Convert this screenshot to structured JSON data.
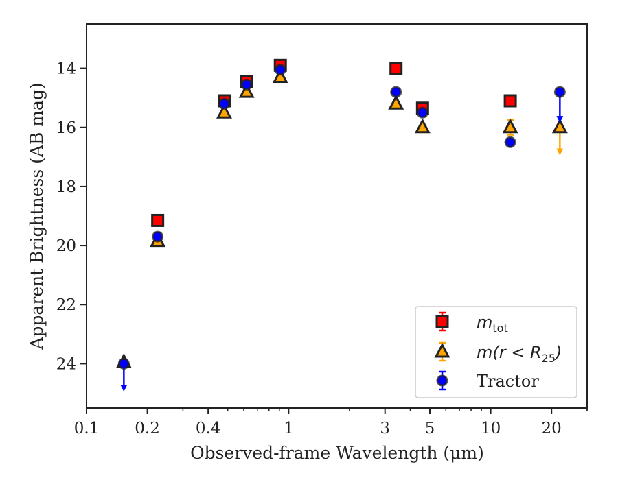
{
  "chart_data": {
    "type": "scatter",
    "title": "",
    "xlabel": "Observed-frame Wavelength (μm)",
    "ylabel": "Apparent Brightness (AB mag)",
    "xscale": "log",
    "xlim": [
      0.1,
      30
    ],
    "ylim": [
      25.5,
      12.5
    ],
    "y_inverted": true,
    "xticks": [
      {
        "value": 0.1,
        "label": "0.1"
      },
      {
        "value": 0.2,
        "label": "0.2"
      },
      {
        "value": 0.4,
        "label": "0.4"
      },
      {
        "value": 1,
        "label": "1"
      },
      {
        "value": 3,
        "label": "3"
      },
      {
        "value": 5,
        "label": "5"
      },
      {
        "value": 10,
        "label": "10"
      },
      {
        "value": 20,
        "label": "20"
      }
    ],
    "yticks": [
      {
        "value": 14,
        "label": "14"
      },
      {
        "value": 16,
        "label": "16"
      },
      {
        "value": 18,
        "label": "18"
      },
      {
        "value": 20,
        "label": "20"
      },
      {
        "value": 22,
        "label": "22"
      },
      {
        "value": 24,
        "label": "24"
      }
    ],
    "grid": false,
    "legend_position": "bottom-right",
    "series": [
      {
        "name": "m_tot",
        "label_main": "m",
        "label_sub": "tot",
        "marker": "square",
        "color": "#ff0000",
        "edge_color": "#222222",
        "points": [
          {
            "x": 0.225,
            "y": 19.15
          },
          {
            "x": 0.48,
            "y": 15.1
          },
          {
            "x": 0.62,
            "y": 14.45
          },
          {
            "x": 0.91,
            "y": 13.9
          },
          {
            "x": 3.4,
            "y": 14.0
          },
          {
            "x": 4.6,
            "y": 15.35
          },
          {
            "x": 12.5,
            "y": 15.1
          }
        ]
      },
      {
        "name": "m(r<R25)",
        "label_main": "m(r < R",
        "label_sub": "25",
        "label_tail": ")",
        "marker": "triangle",
        "color": "#ffa500",
        "edge_color": "#222222",
        "points": [
          {
            "x": 0.153,
            "y": 23.95
          },
          {
            "x": 0.225,
            "y": 19.85
          },
          {
            "x": 0.48,
            "y": 15.5
          },
          {
            "x": 0.62,
            "y": 14.8
          },
          {
            "x": 0.91,
            "y": 14.3
          },
          {
            "x": 3.4,
            "y": 15.2
          },
          {
            "x": 4.6,
            "y": 16.0
          },
          {
            "x": 12.5,
            "y": 16.0,
            "err": 0.25
          },
          {
            "x": 22.0,
            "y": 16.0,
            "upper_limit_to": 16.9
          }
        ]
      },
      {
        "name": "Tractor",
        "label_main": "Tractor",
        "marker": "circle",
        "color": "#0000ff",
        "edge_color": "#222222",
        "points": [
          {
            "x": 0.153,
            "y": 24.0,
            "upper_limit_to": 24.9
          },
          {
            "x": 0.225,
            "y": 19.7
          },
          {
            "x": 0.48,
            "y": 15.2
          },
          {
            "x": 0.62,
            "y": 14.55
          },
          {
            "x": 0.91,
            "y": 14.05
          },
          {
            "x": 3.4,
            "y": 14.8
          },
          {
            "x": 4.6,
            "y": 15.5
          },
          {
            "x": 12.5,
            "y": 16.5
          },
          {
            "x": 22.0,
            "y": 14.8,
            "upper_limit_to": 15.8
          }
        ]
      }
    ]
  }
}
